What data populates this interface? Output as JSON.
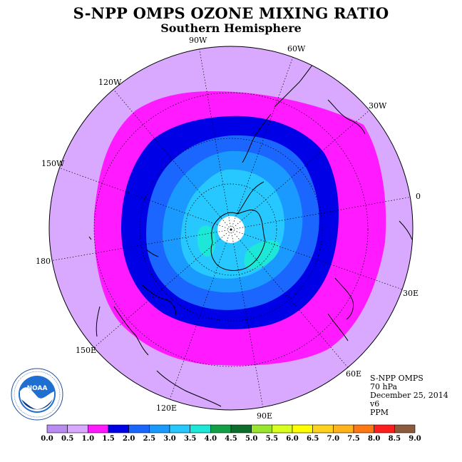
{
  "title": "S-NPP OMPS OZONE MIXING RATIO",
  "subtitle": "Southern Hemisphere",
  "longitude_labels": [
    {
      "id": "lon-90w",
      "text": "90W"
    },
    {
      "id": "lon-60w",
      "text": "60W"
    },
    {
      "id": "lon-30w",
      "text": "30W"
    },
    {
      "id": "lon-0",
      "text": "0"
    },
    {
      "id": "lon-30e",
      "text": "30E"
    },
    {
      "id": "lon-60e",
      "text": "60E"
    },
    {
      "id": "lon-90e",
      "text": "90E"
    },
    {
      "id": "lon-120e",
      "text": "120E"
    },
    {
      "id": "lon-150e",
      "text": "150E"
    },
    {
      "id": "lon-180",
      "text": "180"
    },
    {
      "id": "lon-150w",
      "text": "150W"
    },
    {
      "id": "lon-120w",
      "text": "120W"
    }
  ],
  "info": {
    "instrument": "S-NPP OMPS",
    "pressure_level": "70 hPa",
    "date": "December 25, 2014",
    "version": "v6",
    "units": "PPM"
  },
  "logo": {
    "text": "NOAA",
    "ring_text": "NATIONAL OCEANIC AND ATMOSPHERIC ADMINISTRATION · U.S. DEPARTMENT OF COMMERCE"
  },
  "colorbar": {
    "labels": [
      "0.0",
      "0.5",
      "1.0",
      "1.5",
      "2.0",
      "2.5",
      "3.0",
      "3.5",
      "4.0",
      "4.5",
      "5.0",
      "5.5",
      "6.0",
      "6.5",
      "7.0",
      "7.5",
      "8.0",
      "8.5",
      "9.0"
    ],
    "colors": [
      "#b88cf0",
      "#d9a8ff",
      "#ff1aff",
      "#0000e6",
      "#1a66ff",
      "#1a9aff",
      "#26c8ff",
      "#1de8d8",
      "#12a046",
      "#0d6e2c",
      "#9ae62e",
      "#d8ff1e",
      "#ffff00",
      "#ffd21e",
      "#ffb41e",
      "#ff7814",
      "#ff1e1e",
      "#8c5a3c"
    ]
  },
  "map_levels": {
    "outer_background": "#d9a8ff",
    "fill_order": [
      "#ff1aff",
      "#0000e6",
      "#1a66ff",
      "#1a9aff",
      "#26c8ff",
      "#1de8d8"
    ],
    "pole_fill": "#ffffff"
  }
}
